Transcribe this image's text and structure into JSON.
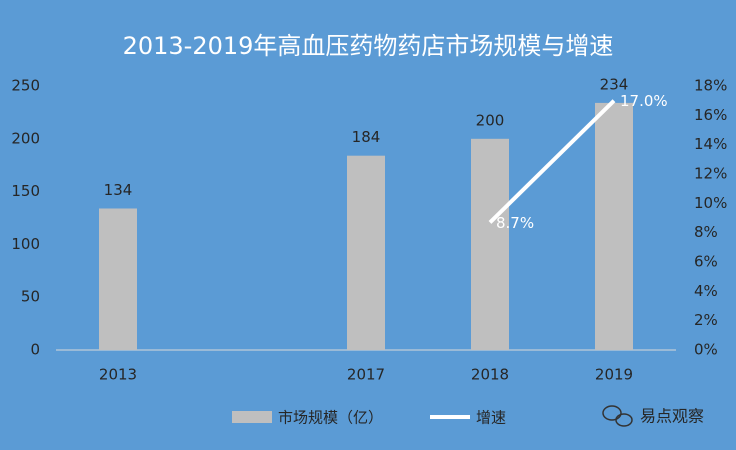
{
  "chart_data": {
    "type": "bar-line",
    "title": "2013-2019年高血压药物药店市场规模与增速",
    "categories": [
      "2013",
      null,
      "2017",
      "2018",
      "2019"
    ],
    "series": [
      {
        "name": "市场规模（亿）",
        "type": "bar",
        "color": "#bfbfbf",
        "values": [
          134,
          null,
          184,
          200,
          234
        ]
      },
      {
        "name": "增速",
        "type": "line",
        "axis": "y2",
        "color": "#ffffff",
        "values": [
          null,
          null,
          null,
          8.7,
          17.0
        ],
        "value_labels": [
          null,
          null,
          null,
          "8.7%",
          "17.0%"
        ]
      }
    ],
    "ylim": [
      0,
      250
    ],
    "yticks": [
      0,
      50,
      100,
      150,
      200,
      250
    ],
    "y2lim": [
      0,
      18
    ],
    "y2ticks": [
      {
        "value": 0,
        "label": "0%"
      },
      {
        "value": 2,
        "label": "2%"
      },
      {
        "value": 4,
        "label": "4%"
      },
      {
        "value": 6,
        "label": "6%"
      },
      {
        "value": 8,
        "label": "8%"
      },
      {
        "value": 10,
        "label": "10%"
      },
      {
        "value": 12,
        "label": "12%"
      },
      {
        "value": 14,
        "label": "14%"
      },
      {
        "value": 16,
        "label": "16%"
      },
      {
        "value": 18,
        "label": "18%"
      }
    ],
    "grid": false,
    "legend": "bottom",
    "background": "#5b9bd5",
    "watermark": "易点观察"
  }
}
